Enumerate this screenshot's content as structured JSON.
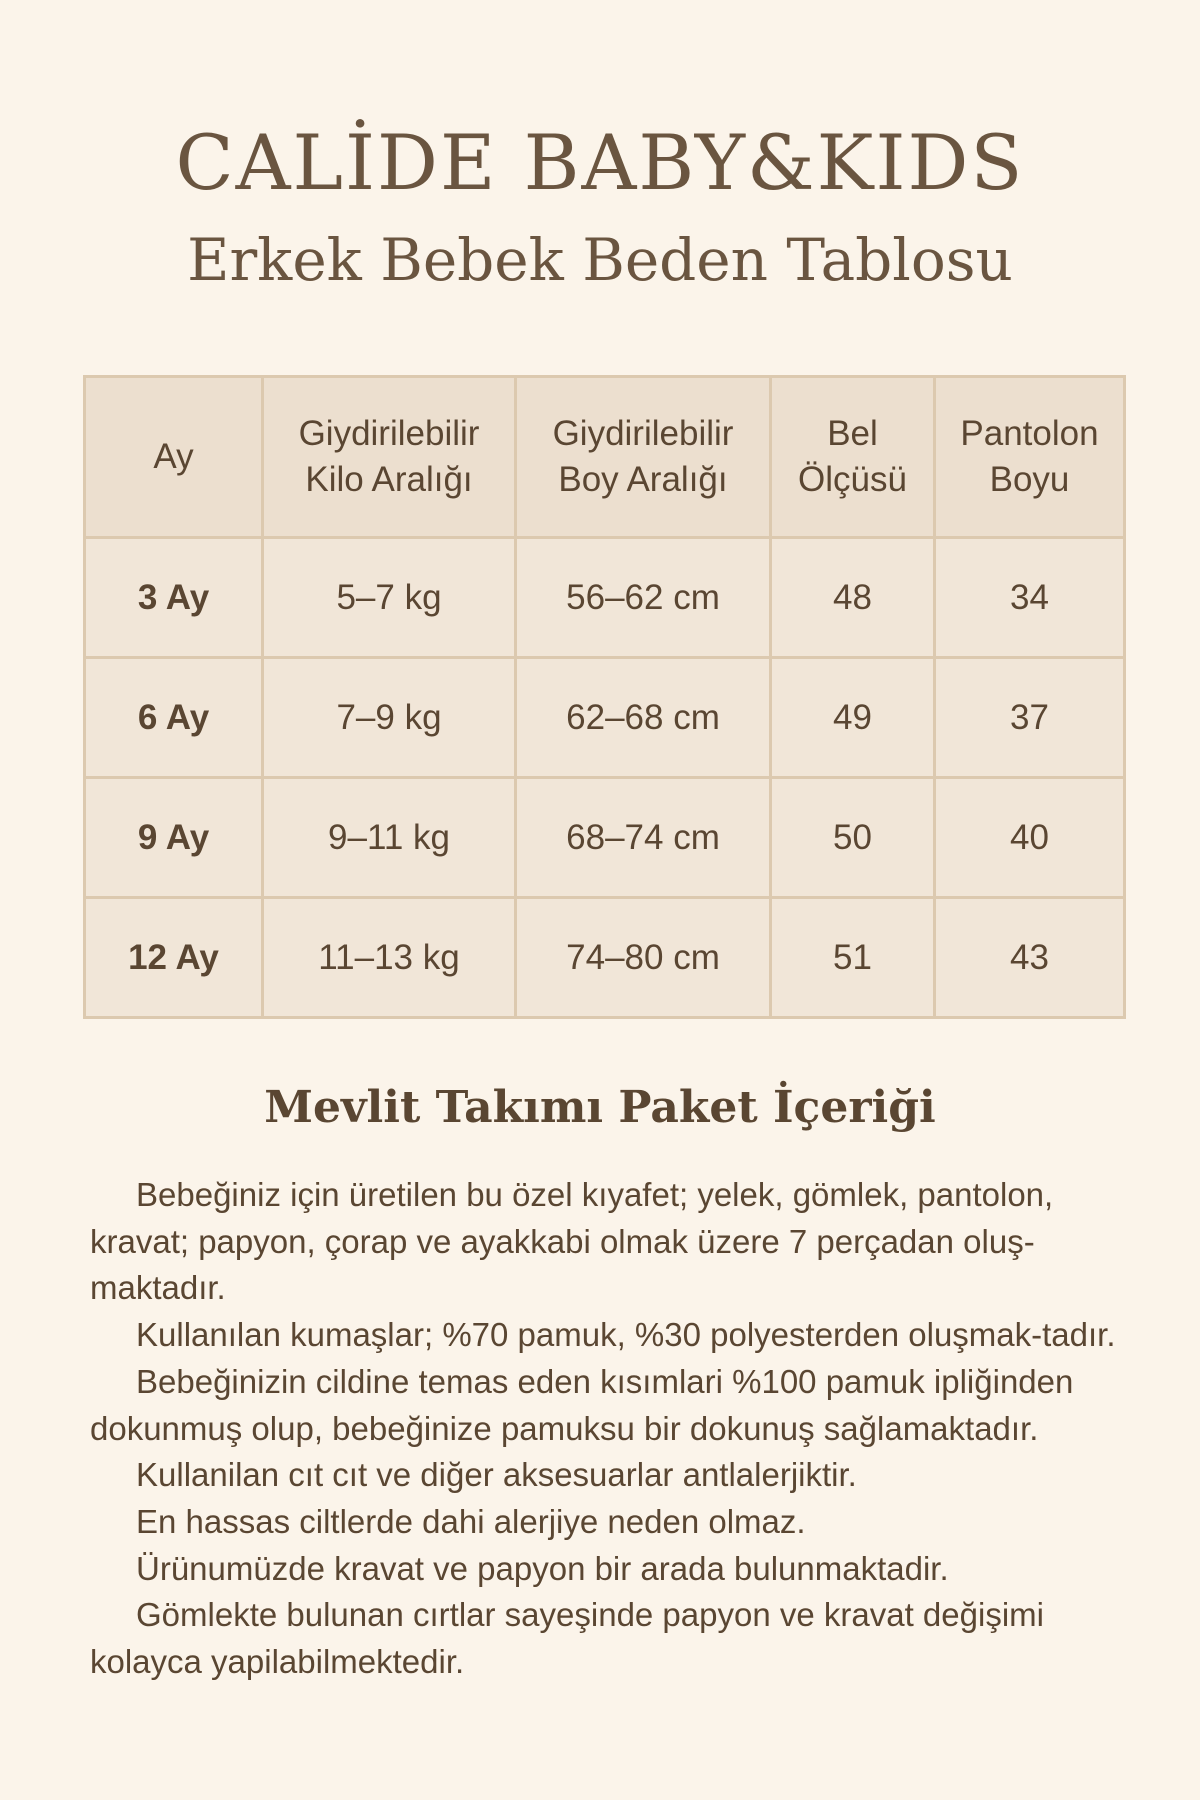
{
  "brand": "CALİDE BABY&KIDS",
  "subtitle": "Erkek Bebek Beden Tablosu",
  "table": {
    "headers": [
      [
        "Ay",
        ""
      ],
      [
        "Giydirilebilir",
        "Kilo Aralığı"
      ],
      [
        "Giydirilebilir",
        "Boy Aralığı"
      ],
      [
        "Bel",
        "Ölçüsü"
      ],
      [
        "Pantolon",
        "Boyu"
      ]
    ],
    "rows": [
      [
        "3 Ay",
        "5–7 kg",
        "56–62 cm",
        "48",
        "34"
      ],
      [
        "6 Ay",
        "7–9 kg",
        "62–68 cm",
        "49",
        "37"
      ],
      [
        "9 Ay",
        "9–11 kg",
        "68–74 cm",
        "50",
        "40"
      ],
      [
        "12 Ay",
        "11–13 kg",
        "74–80 cm",
        "51",
        "43"
      ]
    ]
  },
  "section_title": "Mevlit Takımı Paket İçeriği",
  "paragraphs": [
    "Bebeğiniz için üretilen bu özel kıyafet; yelek, gömlek, pantolon, kravat; papyon, çorap ve ayakkabi olmak üzere 7 perçadan oluş-maktadır.",
    "Kullanılan kumaşlar; %70 pamuk, %30 polyesterden oluşmak-tadır.",
    "Bebeğinizin cildine temas eden kısımlari %100 pamuk ipliğinden dokunmuş olup, bebeğinize pamuksu bir dokunuş sağlamaktadır.",
    "Kullanilan cıt cıt ve diğer aksesuarlar antlalerjiktir.",
    "En hassas ciltlerde dahi alerjiye neden olmaz.",
    "Ürünumüzde kravat ve papyon bir arada bulunmaktadir.",
    "Gömlekte bulunan cırtlar sayeşinde papyon ve kravat değişimi kolayca yapilabilmektedir."
  ]
}
